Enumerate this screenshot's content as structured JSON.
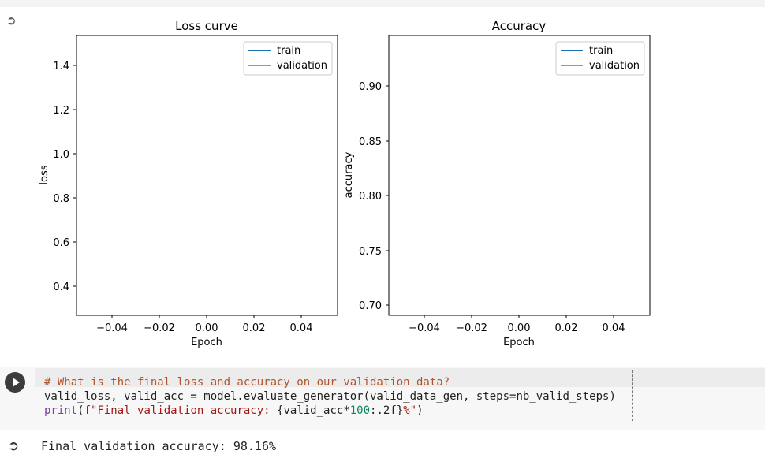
{
  "output_icon": "output-arrow-icon",
  "plots": [
    {
      "title": "Loss curve",
      "xlabel": "Epoch",
      "ylabel": "loss",
      "xticks": [
        "−0.04",
        "−0.02",
        "0.00",
        "0.02",
        "0.04"
      ],
      "yticks": [
        "0.4",
        "0.6",
        "0.8",
        "1.0",
        "1.2",
        "1.4"
      ],
      "legend": [
        "train",
        "validation"
      ]
    },
    {
      "title": "Accuracy",
      "xlabel": "Epoch",
      "ylabel": "accuracy",
      "xticks": [
        "−0.04",
        "−0.02",
        "0.00",
        "0.02",
        "0.04"
      ],
      "yticks": [
        "0.70",
        "0.75",
        "0.80",
        "0.85",
        "0.90"
      ],
      "legend": [
        "train",
        "validation"
      ]
    }
  ],
  "chart_data": [
    {
      "type": "line",
      "title": "Loss curve",
      "xlabel": "Epoch",
      "ylabel": "loss",
      "xlim": [
        -0.05,
        0.05
      ],
      "ylim": [
        0.26,
        1.54
      ],
      "grid": false,
      "legend_position": "top-right",
      "series": [
        {
          "name": "train",
          "color": "#1f77b4",
          "x": [],
          "y": []
        },
        {
          "name": "validation",
          "color": "#ff7f0e",
          "x": [],
          "y": []
        }
      ]
    },
    {
      "type": "line",
      "title": "Accuracy",
      "xlabel": "Epoch",
      "ylabel": "accuracy",
      "xlim": [
        -0.05,
        0.05
      ],
      "ylim": [
        0.69,
        0.946
      ],
      "grid": false,
      "legend_position": "top-right",
      "series": [
        {
          "name": "train",
          "color": "#1f77b4",
          "x": [],
          "y": []
        },
        {
          "name": "validation",
          "color": "#ff7f0e",
          "x": [],
          "y": []
        }
      ]
    }
  ],
  "cell": {
    "run_icon": "play-icon",
    "code_comment": "# What is the final loss and accuracy on our validation data?",
    "code_line2": "valid_loss, valid_acc = model.evaluate_generator(valid_data_gen, steps=nb_valid_steps)",
    "code_line3_kw": "print",
    "code_line3_a": "(",
    "code_line3_str1": "f\"Final validation accuracy: ",
    "code_line3_b": "{valid_acc*",
    "code_line3_num": "100",
    "code_line3_c": ":.2f}",
    "code_line3_str2": "%\"",
    "code_line3_d": ")"
  },
  "output": {
    "text": "Final validation accuracy: 98.16%"
  }
}
